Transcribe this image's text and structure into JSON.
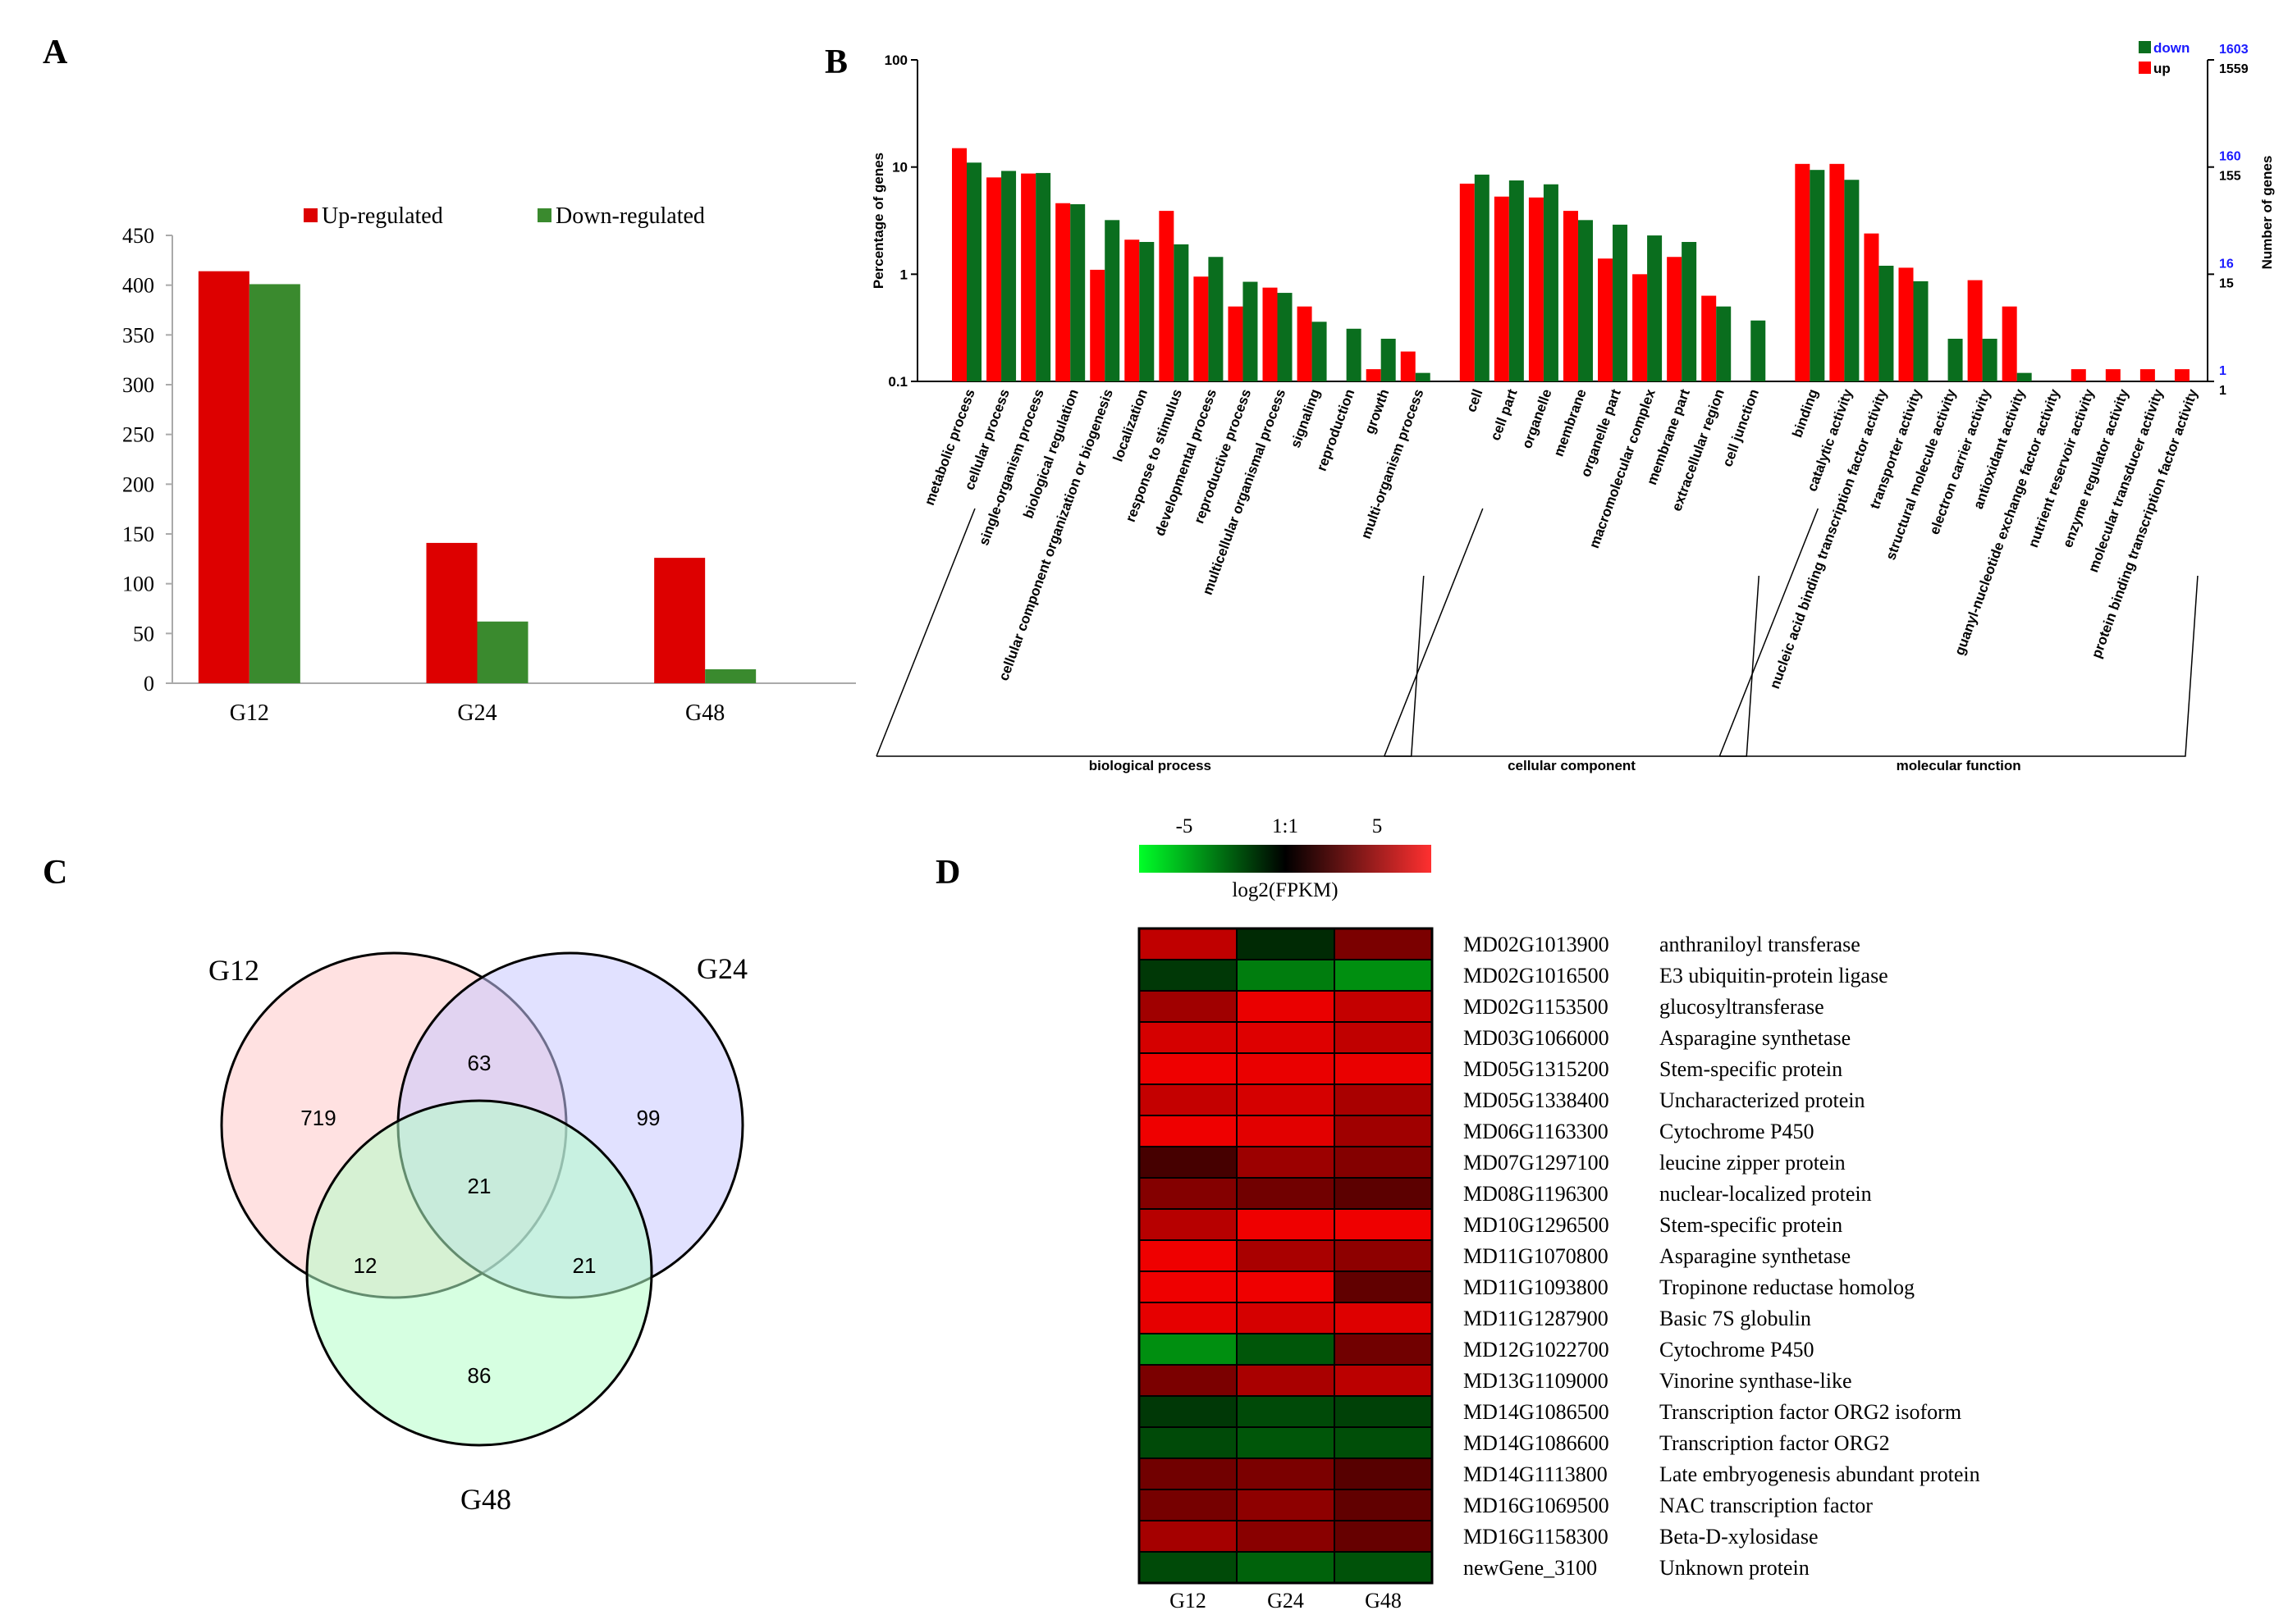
{
  "panels": {
    "a": "A",
    "b": "B",
    "c": "C",
    "d": "D"
  },
  "chart_data": [
    {
      "panel": "A",
      "type": "bar",
      "categories": [
        "G12",
        "G24",
        "G48"
      ],
      "series": [
        {
          "name": "Up-regulated",
          "color": "#dd0000",
          "values": [
            414,
            141,
            126
          ]
        },
        {
          "name": "Down-regulated",
          "color": "#3a8a2e",
          "values": [
            401,
            62,
            14
          ]
        }
      ],
      "yticks": [
        0,
        50,
        100,
        150,
        200,
        250,
        300,
        350,
        400,
        450
      ],
      "ylim": [
        0,
        450
      ],
      "legend_position": "top"
    },
    {
      "panel": "B",
      "type": "bar",
      "yscale": "log",
      "ylabel": "Percentage of genes",
      "ylabel_right": "Number of genes",
      "ylim": [
        0.1,
        100
      ],
      "yticks": [
        "100",
        "10",
        "1",
        "0.1"
      ],
      "right_ticks": [
        {
          "down": "1603",
          "up": "1559"
        },
        {
          "down": "160",
          "up": "155"
        },
        {
          "down": "16",
          "up": "15"
        },
        {
          "down": "1",
          "up": "1"
        }
      ],
      "series_colors": {
        "up": "#ff0000",
        "down": "#0a6e1e"
      },
      "legend": [
        {
          "name": "down",
          "color": "#0a6e1e"
        },
        {
          "name": "up",
          "color": "#ff0000"
        }
      ],
      "categories": [
        {
          "label": "metabolic process",
          "up": 15.0,
          "down": 11.0
        },
        {
          "label": "cellular process",
          "up": 8.0,
          "down": 9.2
        },
        {
          "label": "single-organism process",
          "up": 8.7,
          "down": 8.8
        },
        {
          "label": "biological regulation",
          "up": 4.6,
          "down": 4.5
        },
        {
          "label": "cellular component organization or biogenesis",
          "up": 1.1,
          "down": 3.2
        },
        {
          "label": "localization",
          "up": 2.1,
          "down": 2.0
        },
        {
          "label": "response to stimulus",
          "up": 3.9,
          "down": 1.9
        },
        {
          "label": "developmental process",
          "up": 0.95,
          "down": 1.45
        },
        {
          "label": "reproductive process",
          "up": 0.5,
          "down": 0.85
        },
        {
          "label": "multicellular organismal process",
          "up": 0.75,
          "down": 0.67
        },
        {
          "label": "signaling",
          "up": 0.5,
          "down": 0.36
        },
        {
          "label": "reproduction",
          "up": null,
          "down": 0.31
        },
        {
          "label": "growth",
          "up": 0.13,
          "down": 0.25
        },
        {
          "label": "multi-organism process",
          "up": 0.19,
          "down": 0.12
        },
        {
          "label": "cell",
          "up": 7.0,
          "down": 8.5
        },
        {
          "label": "cell part",
          "up": 5.3,
          "down": 7.5
        },
        {
          "label": "organelle",
          "up": 5.2,
          "down": 6.9
        },
        {
          "label": "membrane",
          "up": 3.9,
          "down": 3.2
        },
        {
          "label": "organelle part",
          "up": 1.4,
          "down": 2.9
        },
        {
          "label": "macromolecular complex",
          "up": 1.0,
          "down": 2.3
        },
        {
          "label": "membrane part",
          "up": 1.45,
          "down": 2.0
        },
        {
          "label": "extracellular region",
          "up": 0.63,
          "down": 0.5
        },
        {
          "label": "cell junction",
          "up": null,
          "down": 0.37
        },
        {
          "label": "binding",
          "up": 10.7,
          "down": 9.4
        },
        {
          "label": "catalytic activity",
          "up": 10.7,
          "down": 7.6
        },
        {
          "label": "nucleic acid binding transcription factor activity",
          "up": 2.4,
          "down": 1.2
        },
        {
          "label": "transporter activity",
          "up": 1.15,
          "down": 0.86
        },
        {
          "label": "structural molecule activity",
          "up": null,
          "down": 0.25
        },
        {
          "label": "electron carrier activity",
          "up": 0.88,
          "down": 0.25
        },
        {
          "label": "antioxidant activity",
          "up": 0.5,
          "down": 0.12
        },
        {
          "label": "guanyl-nucleotide exchange factor activity",
          "up": null,
          "down": null
        },
        {
          "label": "nutrient reservoir activity",
          "up": 0.13,
          "down": null
        },
        {
          "label": "enzyme regulator activity",
          "up": 0.13,
          "down": null
        },
        {
          "label": "molecular transducer activity",
          "up": 0.13,
          "down": null
        },
        {
          "label": "protein binding transcription factor activity",
          "up": 0.13,
          "down": null
        }
      ],
      "groups": [
        {
          "label": "biological process",
          "from": 0,
          "to": 13
        },
        {
          "label": "cellular component",
          "from": 14,
          "to": 22
        },
        {
          "label": "molecular function",
          "from": 23,
          "to": 34
        }
      ]
    },
    {
      "panel": "C",
      "type": "venn",
      "sets": [
        {
          "label": "G12",
          "color": "#ffc8c8"
        },
        {
          "label": "G24",
          "color": "#c8c8ff"
        },
        {
          "label": "G48",
          "color": "#b4ffc8"
        }
      ],
      "regions": {
        "G12_only": 719,
        "G24_only": 99,
        "G48_only": 86,
        "G12_G24": 63,
        "G12_G48": 12,
        "G24_G48": 21,
        "all": 21
      }
    },
    {
      "panel": "D",
      "type": "heatmap",
      "columns": [
        "G12",
        "G24",
        "G48"
      ],
      "scale": {
        "min_label": "-5",
        "mid_label": "1:1",
        "max_label": "5",
        "title": "log2(FPKM)",
        "min": -5,
        "max": 5
      },
      "rows": [
        {
          "gene": "MD02G1013900",
          "desc": "anthraniloyl transferase",
          "values": [
            3.5,
            -0.5,
            2.0
          ]
        },
        {
          "gene": "MD02G1016500",
          "desc": "E3 ubiquitin-protein ligase",
          "values": [
            -0.8,
            -2.5,
            -3.0
          ]
        },
        {
          "gene": "MD02G1153500",
          "desc": "glucosyltransferase",
          "values": [
            2.8,
            4.5,
            3.6
          ]
        },
        {
          "gene": "MD03G1066000",
          "desc": "Asparagine synthetase",
          "values": [
            4.0,
            4.2,
            3.5
          ]
        },
        {
          "gene": "MD05G1315200",
          "desc": "Stem-specific protein",
          "values": [
            4.6,
            4.5,
            4.5
          ]
        },
        {
          "gene": "MD05G1338400",
          "desc": "Uncharacterized protein",
          "values": [
            3.6,
            4.0,
            3.0
          ]
        },
        {
          "gene": "MD06G1163300",
          "desc": "Cytochrome P450",
          "values": [
            4.6,
            4.3,
            2.8
          ]
        },
        {
          "gene": "MD07G1297100",
          "desc": "leucine zipper protein",
          "values": [
            1.0,
            2.7,
            2.2
          ]
        },
        {
          "gene": "MD08G1196300",
          "desc": "nuclear-localized protein",
          "values": [
            2.2,
            1.8,
            1.4
          ]
        },
        {
          "gene": "MD10G1296500",
          "desc": "Stem-specific protein",
          "values": [
            3.3,
            4.6,
            4.6
          ]
        },
        {
          "gene": "MD11G1070800",
          "desc": "Asparagine synthetase",
          "values": [
            4.6,
            3.0,
            2.4
          ]
        },
        {
          "gene": "MD11G1093800",
          "desc": "Tropinone reductase homolog",
          "values": [
            4.6,
            4.6,
            1.5
          ]
        },
        {
          "gene": "MD11G1287900",
          "desc": "Basic 7S globulin",
          "values": [
            4.4,
            4.0,
            4.2
          ]
        },
        {
          "gene": "MD12G1022700",
          "desc": "Cytochrome P450",
          "values": [
            -3.0,
            -1.5,
            1.8
          ]
        },
        {
          "gene": "MD13G1109000",
          "desc": "Vinorine synthase-like",
          "values": [
            2.0,
            3.0,
            3.4
          ]
        },
        {
          "gene": "MD14G1086500",
          "desc": "Transcription factor ORG2 isoform",
          "values": [
            -0.8,
            -1.2,
            -1.0
          ]
        },
        {
          "gene": "MD14G1086600",
          "desc": "Transcription factor ORG2",
          "values": [
            -1.2,
            -1.5,
            -1.3
          ]
        },
        {
          "gene": "MD14G1113800",
          "desc": "Late embryogenesis abundant protein",
          "values": [
            1.8,
            2.0,
            1.3
          ]
        },
        {
          "gene": "MD16G1069500",
          "desc": "NAC transcription factor",
          "values": [
            1.9,
            2.4,
            1.5
          ]
        },
        {
          "gene": "MD16G1158300",
          "desc": "Beta-D-xylosidase",
          "values": [
            2.9,
            2.3,
            1.6
          ]
        },
        {
          "gene": "newGene_3100",
          "desc": "Unknown protein",
          "values": [
            -1.2,
            -1.8,
            -1.4
          ]
        }
      ]
    }
  ]
}
